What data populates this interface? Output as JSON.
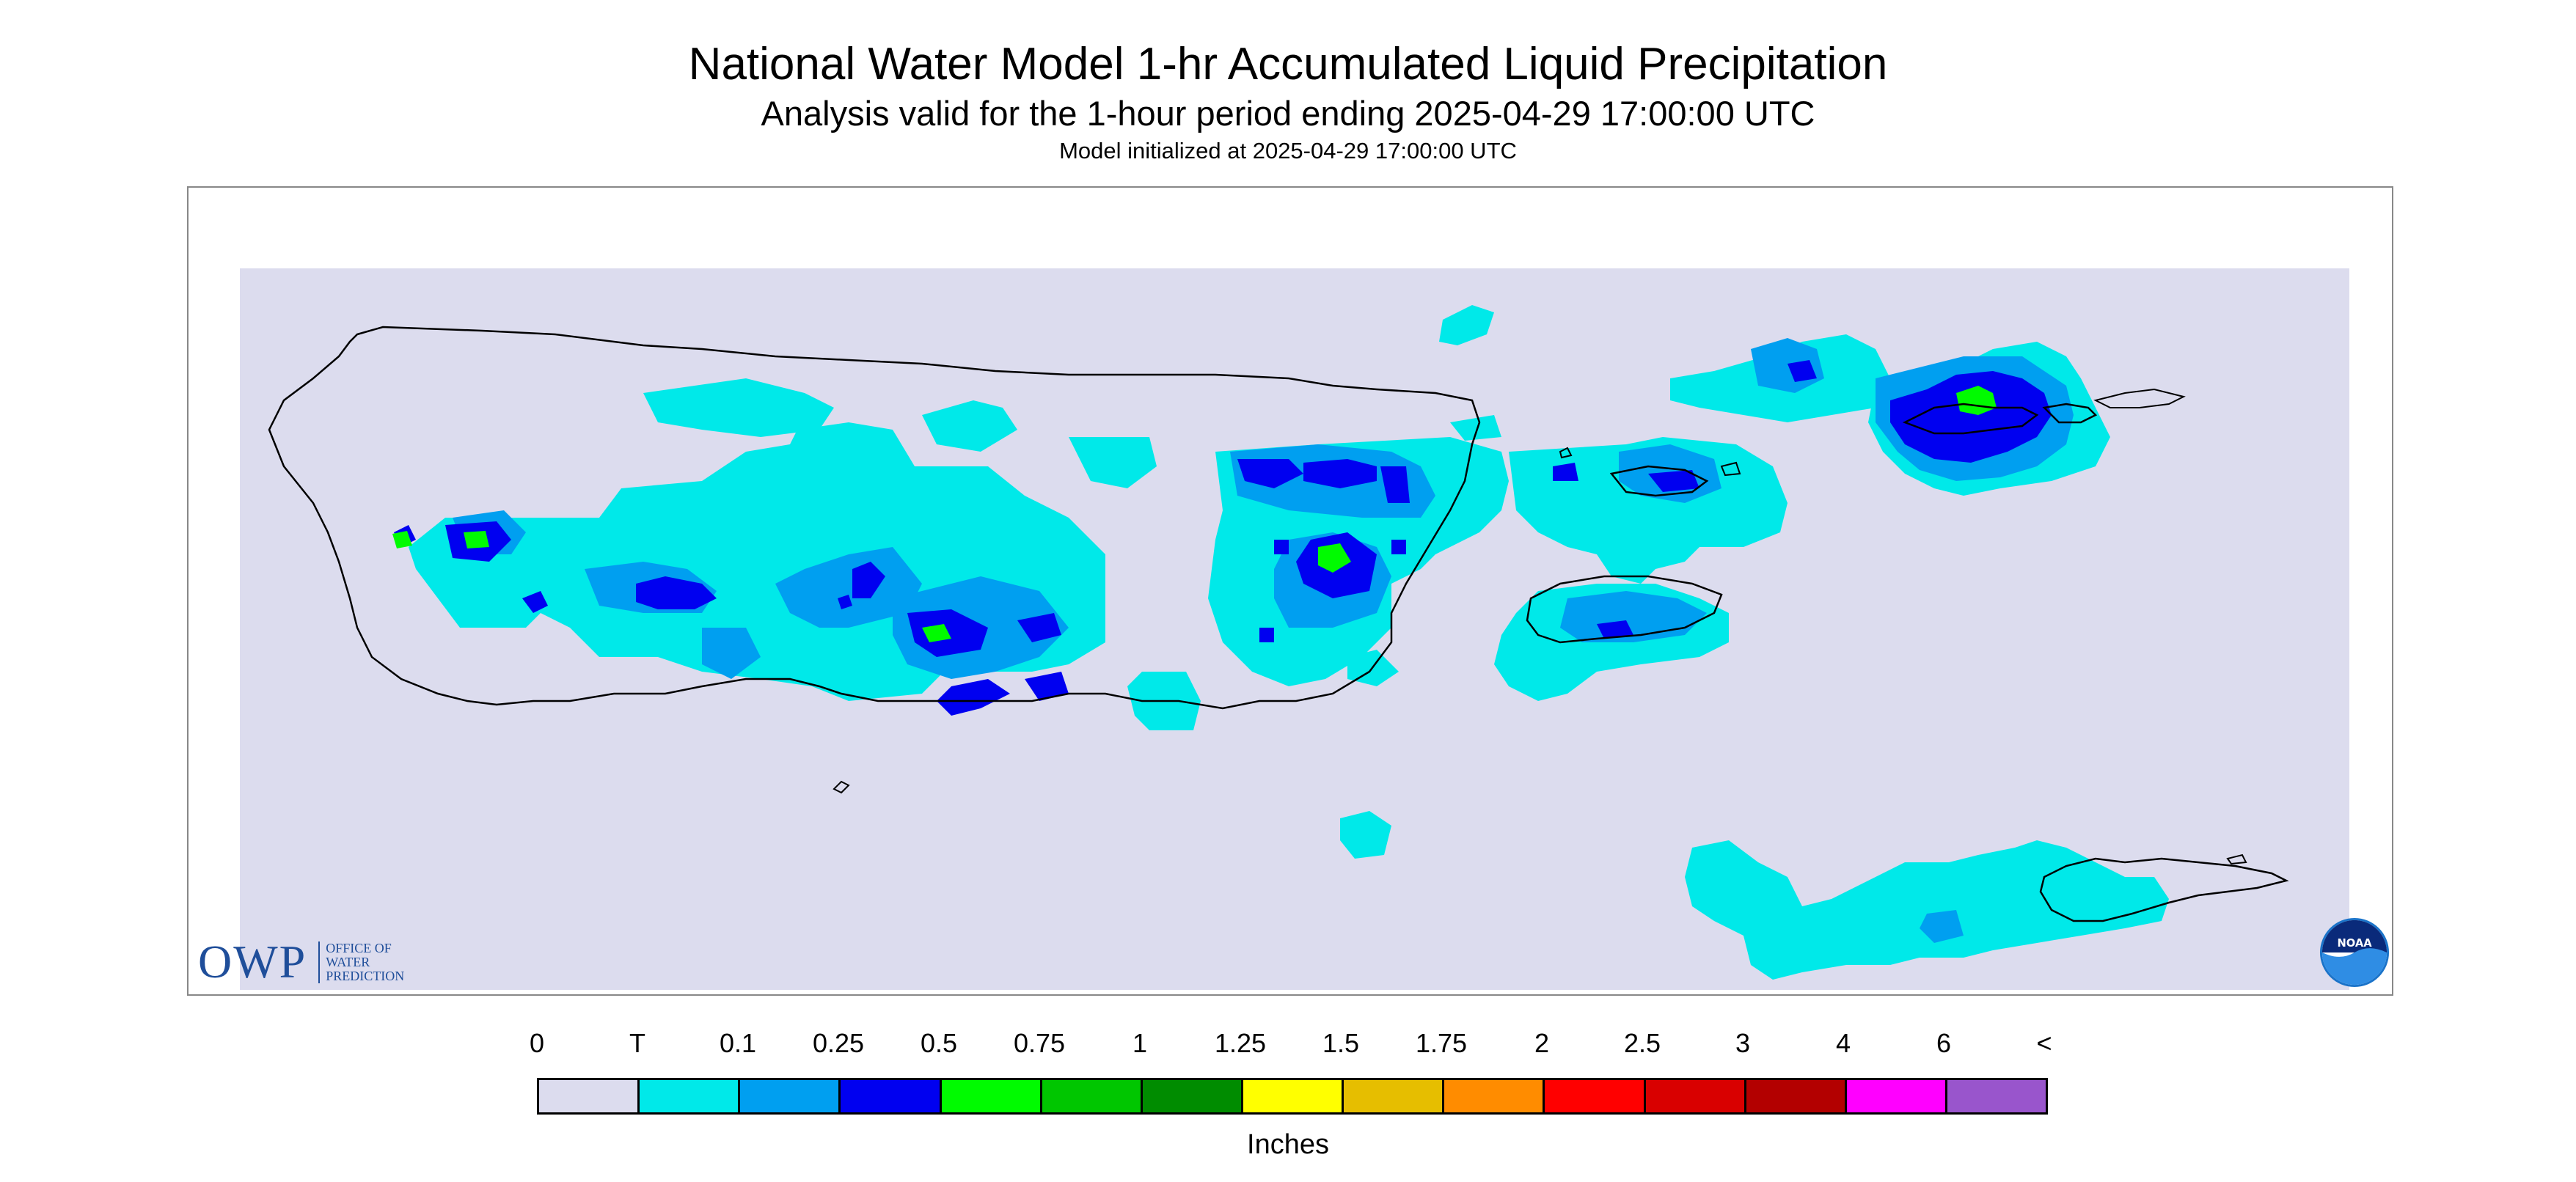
{
  "header": {
    "title": "National Water Model 1-hr Accumulated Liquid Precipitation",
    "subtitle": "Analysis valid for the 1-hour period ending 2025-04-29 17:00:00 UTC",
    "init": "Model initialized at 2025-04-29 17:00:00 UTC"
  },
  "legend": {
    "labels": [
      "0",
      "T",
      "0.1",
      "0.25",
      "0.5",
      "0.75",
      "1",
      "1.25",
      "1.5",
      "1.75",
      "2",
      "2.5",
      "3",
      "4",
      "6",
      "<"
    ],
    "colors": [
      "#dcdcee",
      "#00e9e9",
      "#009ff0",
      "#0000f0",
      "#00fb00",
      "#00c600",
      "#008c00",
      "#ffff00",
      "#e6be00",
      "#ff8c00",
      "#ff0000",
      "#d90000",
      "#b30000",
      "#ff00ff",
      "#9955cc"
    ],
    "units": "Inches"
  },
  "logo": {
    "owp_letters": "OWP",
    "owp_lines": [
      "OFFICE OF",
      "WATER",
      "PREDICTION"
    ],
    "noaa_text": "NOAA"
  },
  "map": {
    "background_color": "#dcdcee",
    "outline_color": "#000000"
  }
}
